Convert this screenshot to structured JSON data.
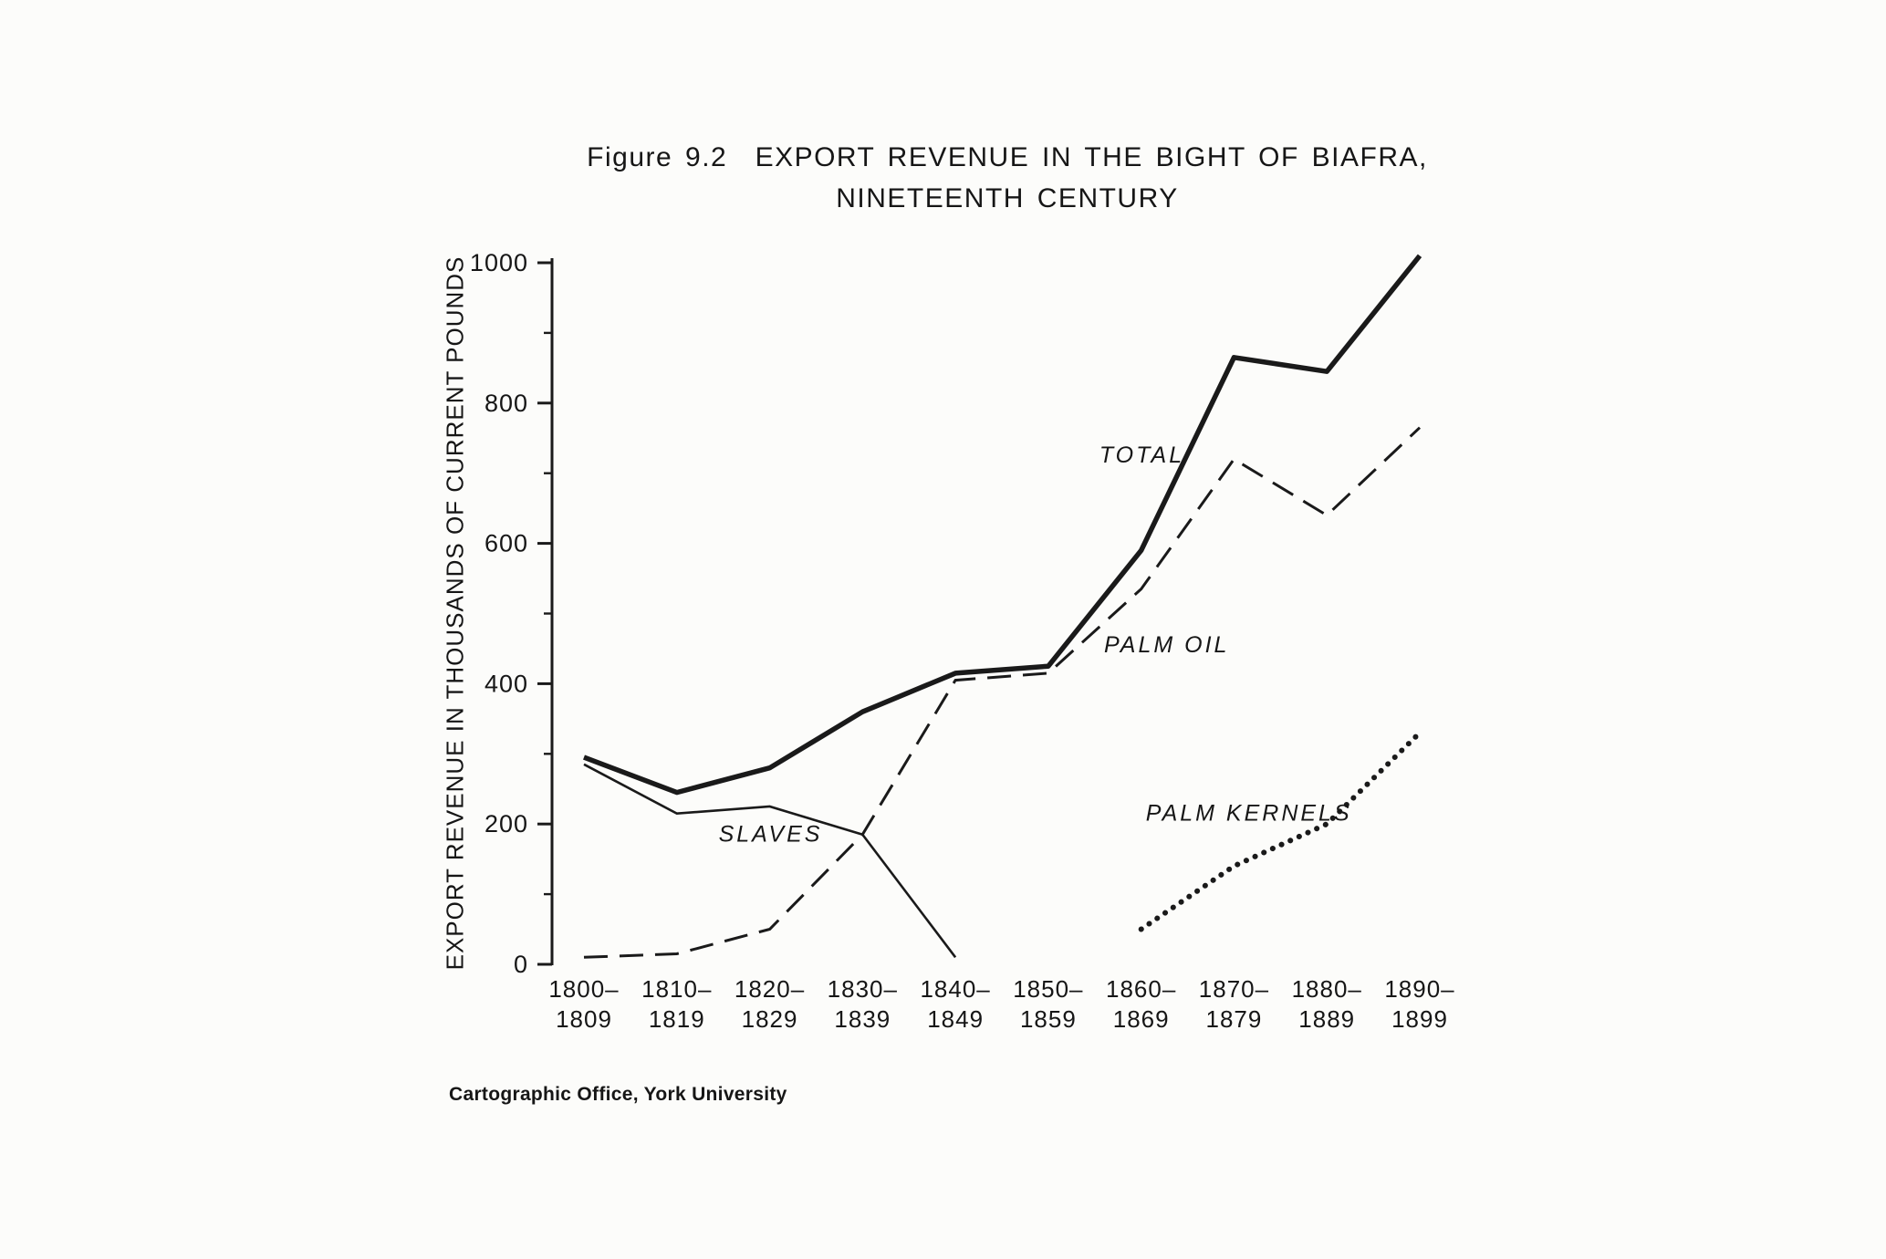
{
  "figure": {
    "title_line1": "Figure 9.2  EXPORT REVENUE IN THE BIGHT OF BIAFRA,",
    "title_line2": "NINETEENTH CENTURY",
    "caption": "Cartographic Office, York University"
  },
  "chart_data": {
    "type": "line",
    "title": "Figure 9.2 EXPORT REVENUE IN THE BIGHT OF BIAFRA, NINETEENTH CENTURY",
    "xlabel": "",
    "ylabel": "EXPORT REVENUE IN THOUSANDS OF CURRENT POUNDS",
    "ylim": [
      0,
      1000
    ],
    "ytick_major": [
      0,
      200,
      400,
      600,
      800,
      1000
    ],
    "ytick_minor": [
      100,
      300,
      500,
      700,
      900
    ],
    "grid": false,
    "legend_position": "inline-annotations",
    "categories": [
      "1800–1809",
      "1810–1819",
      "1820–1829",
      "1830–1839",
      "1840–1849",
      "1850–1859",
      "1860–1869",
      "1870–1879",
      "1880–1889",
      "1890–1899"
    ],
    "category_labels": [
      [
        "1800–",
        "1809"
      ],
      [
        "1810–",
        "1819"
      ],
      [
        "1820–",
        "1829"
      ],
      [
        "1830–",
        "1839"
      ],
      [
        "1840–",
        "1849"
      ],
      [
        "1850–",
        "1859"
      ],
      [
        "1860–",
        "1869"
      ],
      [
        "1870–",
        "1879"
      ],
      [
        "1880–",
        "1889"
      ],
      [
        "1890–",
        "1899"
      ]
    ],
    "series": [
      {
        "name": "TOTAL",
        "style": "solid-thick",
        "values": [
          295,
          245,
          280,
          360,
          415,
          425,
          590,
          865,
          845,
          1010
        ]
      },
      {
        "name": "PALM OIL",
        "style": "dashed",
        "values": [
          10,
          15,
          50,
          185,
          405,
          415,
          535,
          720,
          640,
          765
        ]
      },
      {
        "name": "SLAVES",
        "style": "solid-thin",
        "values": [
          285,
          215,
          225,
          185,
          10,
          null,
          null,
          null,
          null,
          null
        ]
      },
      {
        "name": "PALM KERNELS",
        "style": "dotted",
        "values": [
          null,
          null,
          null,
          null,
          null,
          null,
          50,
          140,
          200,
          330
        ]
      }
    ],
    "annotations": [
      {
        "text": "TOTAL",
        "x": 5.55,
        "y": 715
      },
      {
        "text": "PALM OIL",
        "x": 5.6,
        "y": 445
      },
      {
        "text": "SLAVES",
        "x": 1.45,
        "y": 175
      },
      {
        "text": "PALM KERNELS",
        "x": 6.05,
        "y": 205
      }
    ],
    "colors": {
      "ink": "#1a1a1a",
      "paper": "#fcfcfa"
    }
  }
}
